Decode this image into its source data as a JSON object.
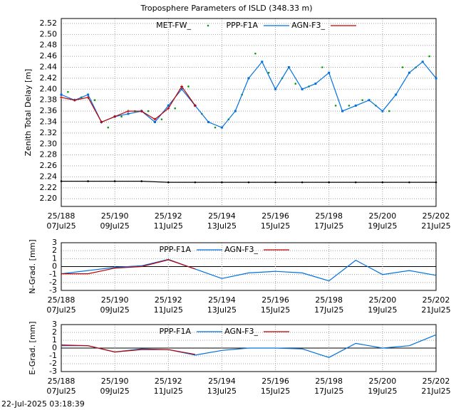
{
  "chart_data": [
    {
      "type": "line",
      "title": "Troposphere Parameters of ISLD (348.33 m)",
      "ylabel": "Zenith Total Delay [m]",
      "xlim": [
        188,
        202
      ],
      "ylim": [
        2.186,
        2.529
      ],
      "grid": true,
      "xticks": [
        {
          "value": 188,
          "label": "25/188",
          "sublabel": "07Jul25"
        },
        {
          "value": 190,
          "label": "25/190",
          "sublabel": "09Jul25"
        },
        {
          "value": 192,
          "label": "25/192",
          "sublabel": "11Jul25"
        },
        {
          "value": 194,
          "label": "25/194",
          "sublabel": "13Jul25"
        },
        {
          "value": 196,
          "label": "25/196",
          "sublabel": "15Jul25"
        },
        {
          "value": 198,
          "label": "25/198",
          "sublabel": "17Jul25"
        },
        {
          "value": 200,
          "label": "25/200",
          "sublabel": "19Jul25"
        },
        {
          "value": 202,
          "label": "25/202",
          "sublabel": "21Jul25"
        }
      ],
      "yticks": [
        {
          "value": 2.2,
          "label": "2.20"
        },
        2.22,
        2.24,
        2.26,
        2.28,
        {
          "value": 2.3,
          "label": "2.30"
        },
        2.32,
        2.34,
        2.36,
        2.38,
        {
          "value": 2.4,
          "label": "2.40"
        },
        2.42,
        2.44,
        2.46,
        2.48,
        {
          "value": 2.5,
          "label": "2.50"
        },
        2.52
      ],
      "series": [
        {
          "name": "MET-FW_",
          "color": "#00a000",
          "line": false,
          "marker": "dot",
          "x": [
            188.25,
            188.75,
            189.25,
            189.75,
            190.25,
            190.75,
            191.25,
            191.75,
            192.25,
            192.75,
            193.25,
            193.75,
            194.25,
            194.75,
            195.25,
            195.75,
            196.25,
            196.75,
            197.25,
            197.75,
            198.25,
            198.75,
            199.25,
            199.75,
            200.25,
            200.75,
            201.25,
            201.75
          ],
          "values": [
            2.395,
            2.385,
            2.38,
            2.33,
            2.35,
            2.36,
            2.36,
            2.345,
            2.365,
            2.405,
            2.355,
            2.33,
            2.345,
            2.39,
            2.465,
            2.43,
            2.42,
            2.41,
            2.405,
            2.44,
            2.37,
            2.37,
            2.38,
            2.37,
            2.36,
            2.44,
            2.44,
            2.46
          ]
        },
        {
          "name": "PPP-F1A",
          "color": "#0070e0",
          "line": true,
          "marker": "square",
          "x": [
            188,
            188.5,
            189,
            189.5,
            190,
            190.5,
            191,
            191.5,
            192,
            192.5,
            193,
            193.5,
            194,
            194.5,
            195,
            195.5,
            196,
            196.5,
            197,
            197.5,
            198,
            198.5,
            199,
            199.5,
            200,
            200.5,
            201,
            201.5,
            202
          ],
          "values": [
            2.39,
            2.38,
            2.39,
            2.34,
            2.35,
            2.355,
            2.36,
            2.34,
            2.37,
            2.4,
            2.37,
            2.34,
            2.33,
            2.36,
            2.42,
            2.45,
            2.4,
            2.44,
            2.4,
            2.41,
            2.43,
            2.36,
            2.37,
            2.38,
            2.36,
            2.39,
            2.43,
            2.45,
            2.42
          ]
        },
        {
          "name": "AGN-F3_",
          "color": "#c00000",
          "line": true,
          "marker": "plus",
          "x": [
            188,
            188.5,
            189,
            189.5,
            190,
            190.5,
            191,
            191.5,
            192,
            192.5,
            193
          ],
          "values": [
            2.385,
            2.38,
            2.385,
            2.34,
            2.35,
            2.36,
            2.36,
            2.345,
            2.365,
            2.405,
            2.37
          ]
        },
        {
          "color": "#000000",
          "line": true,
          "marker": "dot",
          "x": [
            188,
            189,
            190,
            191,
            192,
            193,
            194,
            195,
            196,
            197,
            198,
            199,
            200,
            201,
            202
          ],
          "values": [
            2.232,
            2.232,
            2.232,
            2.232,
            2.23,
            2.23,
            2.23,
            2.23,
            2.23,
            2.23,
            2.23,
            2.23,
            2.23,
            2.23,
            2.23
          ]
        }
      ]
    },
    {
      "type": "line",
      "ylabel": "N-Grad. [mm]",
      "xlim": [
        188,
        202
      ],
      "ylim": [
        -3,
        3
      ],
      "grid": true,
      "zero_line": true,
      "xticks": [
        {
          "value": 188,
          "label": "25/188",
          "sublabel": "07Jul25"
        },
        {
          "value": 190,
          "label": "25/190",
          "sublabel": "09Jul25"
        },
        {
          "value": 192,
          "label": "25/192",
          "sublabel": "11Jul25"
        },
        {
          "value": 194,
          "label": "25/194",
          "sublabel": "13Jul25"
        },
        {
          "value": 196,
          "label": "25/196",
          "sublabel": "15Jul25"
        },
        {
          "value": 198,
          "label": "25/198",
          "sublabel": "17Jul25"
        },
        {
          "value": 200,
          "label": "25/200",
          "sublabel": "19Jul25"
        },
        {
          "value": 202,
          "label": "25/202",
          "sublabel": "21Jul25"
        }
      ],
      "yticks": [
        -3,
        -2,
        -1,
        0,
        1,
        2,
        3
      ],
      "series": [
        {
          "name": "PPP-F1A",
          "color": "#0070e0",
          "line": true,
          "x": [
            188,
            189,
            190,
            191,
            192,
            193,
            194,
            195,
            196,
            197,
            198,
            199,
            200,
            201,
            202
          ],
          "values": [
            -0.9,
            -0.5,
            -0.1,
            0.1,
            0.9,
            -0.3,
            -1.5,
            -0.8,
            -0.6,
            -0.8,
            -1.8,
            0.8,
            -1.0,
            -0.5,
            -1.1
          ]
        },
        {
          "name": "AGN-F3_",
          "color": "#c00000",
          "line": true,
          "x": [
            188,
            189,
            190,
            191,
            192,
            193
          ],
          "values": [
            -0.9,
            -0.9,
            -0.2,
            0.0,
            0.85,
            -0.3
          ]
        }
      ]
    },
    {
      "type": "line",
      "ylabel": "E-Grad. [mm]",
      "xlim": [
        188,
        202
      ],
      "ylim": [
        -3,
        3
      ],
      "grid": true,
      "zero_line": true,
      "xticks": [
        {
          "value": 188,
          "label": "25/188",
          "sublabel": "07Jul25"
        },
        {
          "value": 190,
          "label": "25/190",
          "sublabel": "09Jul25"
        },
        {
          "value": 192,
          "label": "25/192",
          "sublabel": "11Jul25"
        },
        {
          "value": 194,
          "label": "25/194",
          "sublabel": "13Jul25"
        },
        {
          "value": 196,
          "label": "25/196",
          "sublabel": "15Jul25"
        },
        {
          "value": 198,
          "label": "25/198",
          "sublabel": "17Jul25"
        },
        {
          "value": 200,
          "label": "25/200",
          "sublabel": "19Jul25"
        },
        {
          "value": 202,
          "label": "25/202",
          "sublabel": "21Jul25"
        }
      ],
      "yticks": [
        -3,
        -2,
        -1,
        0,
        1,
        2,
        3
      ],
      "series": [
        {
          "name": "PPP-F1A",
          "color": "#0070e0",
          "line": true,
          "x": [
            188,
            189,
            190,
            191,
            192,
            193,
            194,
            195,
            196,
            197,
            198,
            199,
            200,
            201,
            202
          ],
          "values": [
            0.3,
            0.3,
            -0.5,
            -0.1,
            -0.2,
            -0.9,
            -0.3,
            0.0,
            0.0,
            -0.1,
            -1.2,
            0.6,
            0.0,
            0.3,
            1.7
          ]
        },
        {
          "name": "AGN-F3_",
          "color": "#c00000",
          "line": true,
          "x": [
            188,
            189,
            190,
            191,
            192,
            193
          ],
          "values": [
            0.4,
            0.3,
            -0.5,
            -0.2,
            -0.2,
            -0.8
          ]
        }
      ]
    }
  ],
  "footer": "22-Jul-2025 03:18:39"
}
